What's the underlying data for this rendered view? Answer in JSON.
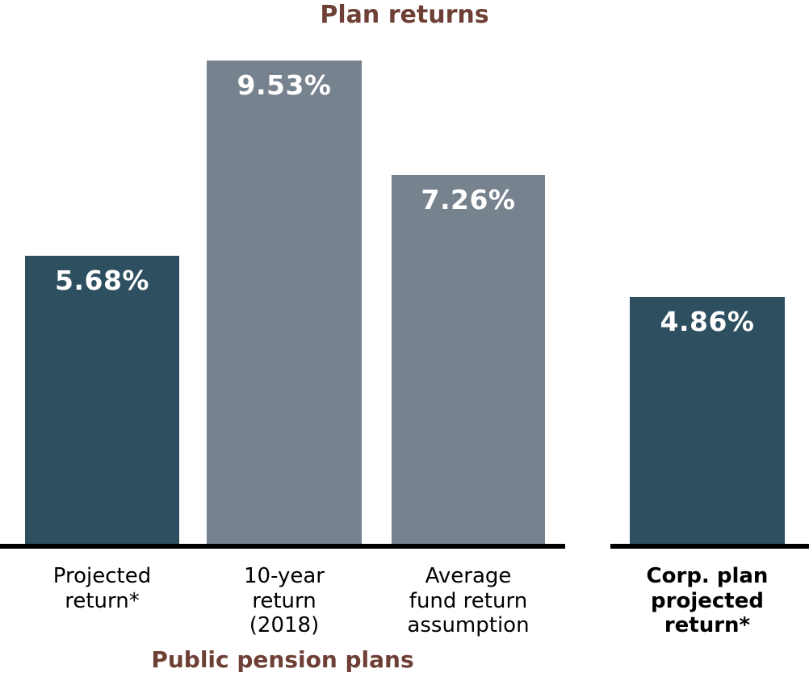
{
  "chart_data": {
    "type": "bar",
    "title": "Plan returns",
    "group_label": "Public pension plans",
    "categories": [
      "Projected\nreturn*",
      "10-year\nreturn\n(2018)",
      "Average\nfund return\nassumption",
      "Corp. plan\nprojected\nreturn*"
    ],
    "values": [
      5.68,
      9.53,
      7.26,
      4.86
    ],
    "value_labels": [
      "5.68%",
      "9.53%",
      "7.26%",
      "4.86%"
    ],
    "category_bold": [
      false,
      false,
      false,
      true
    ],
    "bar_color_keys": [
      "teal",
      "gray",
      "gray",
      "teal"
    ],
    "colors": {
      "teal": "#2d4f5f",
      "gray": "#76828e",
      "title_text": "#6e3f35",
      "value_text": "#ffffff",
      "category_text": "#000000",
      "axis": "#000000"
    },
    "ylim": [
      0,
      10
    ],
    "xlabel": "",
    "ylabel": "",
    "legend": "none",
    "grid": "off",
    "axis_style": "no y-axis; two separate black baseline segments (left group of 3 bars, right single bar); value labels inside bar tops"
  }
}
